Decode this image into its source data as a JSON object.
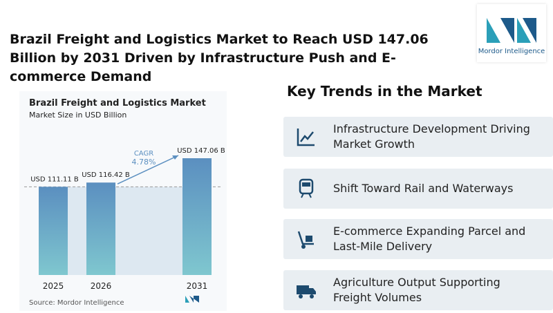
{
  "title": "Brazil Freight and Logistics Market to Reach USD 147.06 Billion by 2031 Driven by Infrastructure Push and E-commerce Demand",
  "logo": "Mordor Intelligence",
  "chart_data": {
    "type": "bar",
    "title": "Brazil Freight and Logistics Market",
    "subtitle": "Market Size in USD Billion",
    "categories": [
      "2025",
      "2026",
      "2031"
    ],
    "values": [
      111.11,
      116.42,
      147.06
    ],
    "value_labels": [
      "USD 111.11 B",
      "USD 116.42 B",
      "USD 147.06 B"
    ],
    "colors": [
      "#5b8fc0",
      "#7fc7cf"
    ],
    "cagr_label": "CAGR",
    "cagr_value": "4.78%",
    "source": "Source: Mordor Intelligence"
  },
  "trends": {
    "title": "Key Trends in the Market",
    "items": [
      "Infrastructure Development Driving Market Growth",
      "Shift Toward Rail and Waterways",
      "E-commerce Expanding Parcel and Last-Mile Delivery",
      "Agriculture Output Supporting Freight Volumes"
    ]
  }
}
